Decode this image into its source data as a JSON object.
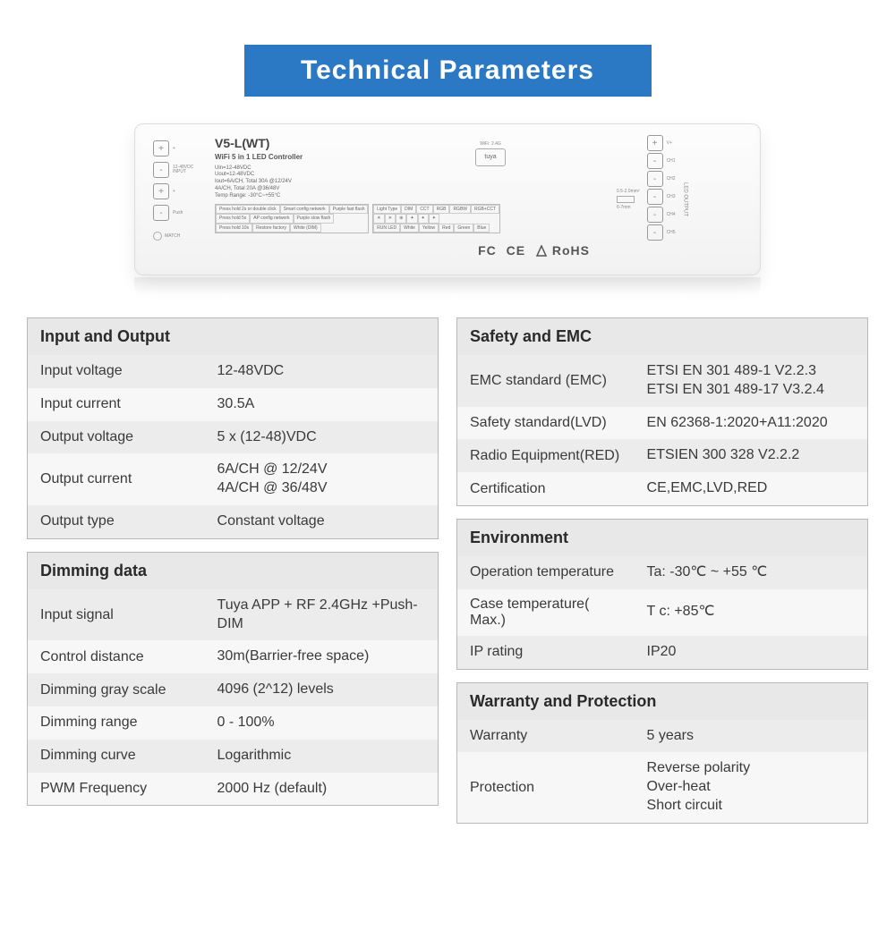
{
  "title": "Technical Parameters",
  "device": {
    "model": "V5-L(WT)",
    "subtitle": "WiFi 5 in 1 LED Controller",
    "specs": [
      "Uin=12-48VDC",
      "Uout=12-48VDC",
      "Iout=6A/CH, Total 30A @12/24V",
      "4A/CH, Total 20A @36/48V",
      "Temp Range: -30°C~+55°C"
    ],
    "wifi_label": "WiFi: 2.4G",
    "tuya_label": "tuya",
    "wire_spec1": "0.5-2.0mm²",
    "wire_spec2": "6-7mm",
    "output_label": "LED OUTPUT",
    "cert_text": "RoHS",
    "fc": "FC",
    "ce": "CE",
    "match": "MATCH",
    "table1_r1": [
      "Press hold 2s or double click",
      "Smart config network",
      "Purple fast flash"
    ],
    "table1_r2": [
      "Press hold 5s",
      "AP config network",
      "Purple slow flash"
    ],
    "table1_r3": [
      "Press hold 10s",
      "Restore factory",
      "White (DIM)"
    ],
    "table2_h": [
      "Light Type",
      "DIM",
      "CCT",
      "RGB",
      "RGBW",
      "RGB+CCT"
    ],
    "table2_r": [
      "RUN LED",
      "White",
      "Yellow",
      "Red",
      "Green",
      "Blue"
    ]
  },
  "sections": {
    "input_output": {
      "header": "Input and Output",
      "rows": [
        {
          "label": "Input voltage",
          "value": "12-48VDC"
        },
        {
          "label": "Input current",
          "value": "30.5A"
        },
        {
          "label": "Output voltage",
          "value": "5 x (12-48)VDC"
        },
        {
          "label": "Output current",
          "value": "6A/CH @ 12/24V\n4A/CH @ 36/48V"
        },
        {
          "label": "Output type",
          "value": "Constant voltage"
        }
      ]
    },
    "dimming": {
      "header": "Dimming data",
      "rows": [
        {
          "label": "Input signal",
          "value": "Tuya APP + RF 2.4GHz +Push-DIM"
        },
        {
          "label": "Control distance",
          "value": "30m(Barrier-free space)"
        },
        {
          "label": "Dimming gray scale",
          "value": "4096 (2^12) levels"
        },
        {
          "label": "Dimming range",
          "value": "0 - 100%"
        },
        {
          "label": "Dimming curve",
          "value": "Logarithmic"
        },
        {
          "label": "PWM Frequency",
          "value": "2000 Hz (default)"
        }
      ]
    },
    "safety": {
      "header": "Safety and EMC",
      "rows": [
        {
          "label": "EMC standard (EMC)",
          "value": "ETSI EN 301 489-1 V2.2.3\nETSI EN 301 489-17 V3.2.4"
        },
        {
          "label": "Safety standard(LVD)",
          "value": "EN 62368-1:2020+A11:2020"
        },
        {
          "label": "Radio Equipment(RED)",
          "value": "ETSIEN 300 328 V2.2.2"
        },
        {
          "label": "Certification",
          "value": "CE,EMC,LVD,RED"
        }
      ]
    },
    "environment": {
      "header": "Environment",
      "rows": [
        {
          "label": "Operation temperature",
          "value": "Ta: -30℃ ~ +55 ℃"
        },
        {
          "label": "Case temperature( Max.)",
          "value": "T c:  +85℃"
        },
        {
          "label": "IP rating",
          "value": "IP20"
        }
      ]
    },
    "warranty": {
      "header": "Warranty and Protection",
      "rows": [
        {
          "label": "Warranty",
          "value": "5 years"
        },
        {
          "label": "Protection",
          "value": "Reverse polarity\nOver-heat\nShort circuit"
        }
      ]
    }
  }
}
